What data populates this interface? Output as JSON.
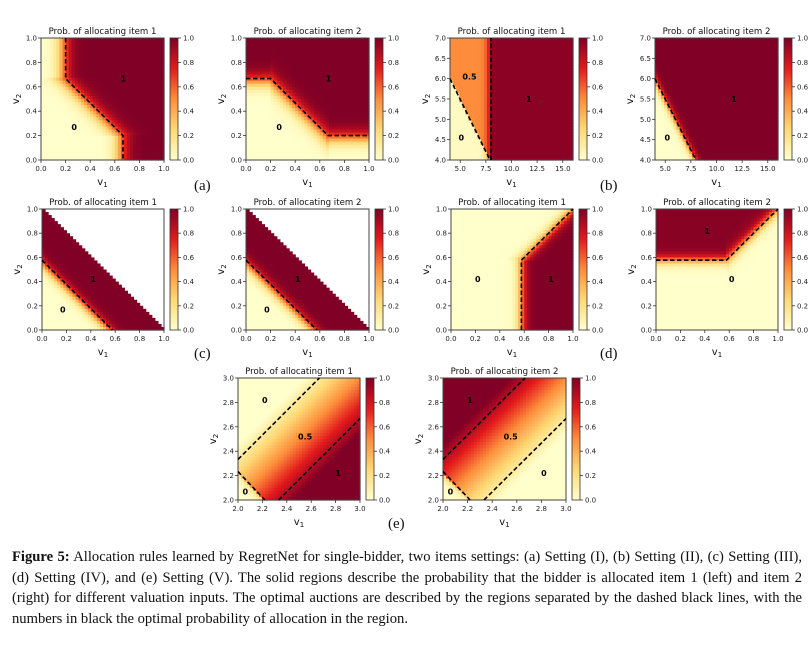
{
  "figure": {
    "caption_label": "Figure 5:",
    "caption_text": "Allocation rules learned by RegretNet for single-bidder, two items settings: (a) Setting (I), (b) Setting (II), (c) Setting (III), (d) Setting (IV), and (e) Setting (V). The solid regions describe the probability that the bidder is allocated item 1 (left) and item 2 (right) for different valuation inputs. The optimal auctions are described by the regions separated by the dashed black lines, with the numbers in black the optimal probability of allocation in the region.",
    "sublabels": [
      "(a)",
      "(b)",
      "(c)",
      "(d)",
      "(e)"
    ],
    "colormap": "YlOrRd",
    "colormap_colors": [
      "#ffffcc",
      "#fed976",
      "#fd8d3c",
      "#e31a1c",
      "#800026"
    ],
    "dashed_line_color": "#000000"
  },
  "chart_data": [
    {
      "type": "heatmap",
      "panel": "a",
      "title": "Prob. of allocating item 1",
      "xlabel": "v1",
      "ylabel": "v2",
      "xlim": [
        0,
        1
      ],
      "ylim": [
        0,
        1
      ],
      "xticks": [
        "0.0",
        "0.2",
        "0.4",
        "0.6",
        "0.8",
        "1.0"
      ],
      "yticks": [
        "0.0",
        "0.2",
        "0.4",
        "0.6",
        "0.8",
        "1.0"
      ],
      "colorbar_ticks": [
        "0.0",
        "0.2",
        "0.4",
        "0.6",
        "0.8",
        "1.0"
      ],
      "boundary": [
        [
          0.2,
          1.0
        ],
        [
          0.2,
          0.667
        ],
        [
          0.667,
          0.2
        ],
        [
          0.667,
          0.0
        ]
      ],
      "region_labels": [
        {
          "text": "1",
          "x": 0.67,
          "y": 0.67
        },
        {
          "text": "0",
          "x": 0.27,
          "y": 0.27
        }
      ]
    },
    {
      "type": "heatmap",
      "panel": "a",
      "title": "Prob. of allocating item 2",
      "xlabel": "v1",
      "ylabel": "v2",
      "xlim": [
        0,
        1
      ],
      "ylim": [
        0,
        1
      ],
      "xticks": [
        "0.0",
        "0.2",
        "0.4",
        "0.6",
        "0.8",
        "1.0"
      ],
      "yticks": [
        "0.0",
        "0.2",
        "0.4",
        "0.6",
        "0.8",
        "1.0"
      ],
      "colorbar_ticks": [
        "0.0",
        "0.2",
        "0.4",
        "0.6",
        "0.8",
        "1.0"
      ],
      "boundary": [
        [
          0.0,
          0.667
        ],
        [
          0.2,
          0.667
        ],
        [
          0.667,
          0.2
        ],
        [
          1.0,
          0.2
        ]
      ],
      "region_labels": [
        {
          "text": "1",
          "x": 0.67,
          "y": 0.67
        },
        {
          "text": "0",
          "x": 0.27,
          "y": 0.27
        }
      ]
    },
    {
      "type": "heatmap",
      "panel": "b",
      "title": "Prob. of allocating item 1",
      "xlabel": "v1",
      "ylabel": "v2",
      "xlim": [
        4,
        16
      ],
      "ylim": [
        4,
        7
      ],
      "xticks": [
        "5.0",
        "7.5",
        "10.0",
        "12.5",
        "15.0"
      ],
      "xtick_values": [
        5,
        7.5,
        10,
        12.5,
        15
      ],
      "yticks": [
        "4.0",
        "4.5",
        "5.0",
        "5.5",
        "6.0",
        "6.5",
        "7.0"
      ],
      "ytick_values": [
        4,
        4.5,
        5,
        5.5,
        6,
        6.5,
        7
      ],
      "colorbar_ticks": [
        "0.0",
        "0.2",
        "0.4",
        "0.6",
        "0.8",
        "1.0"
      ],
      "boundaries": [
        [
          [
            4,
            6
          ],
          [
            7.9,
            4
          ]
        ],
        [
          [
            8,
            4
          ],
          [
            8,
            7
          ]
        ]
      ],
      "region_labels": [
        {
          "text": "0.5",
          "x": 5.9,
          "y": 6.05
        },
        {
          "text": "1",
          "x": 11.7,
          "y": 5.5
        },
        {
          "text": "0",
          "x": 5.1,
          "y": 4.55
        }
      ]
    },
    {
      "type": "heatmap",
      "panel": "b",
      "title": "Prob. of allocating item 2",
      "xlabel": "v1",
      "ylabel": "v2",
      "xlim": [
        4,
        16
      ],
      "ylim": [
        4,
        7
      ],
      "xticks": [
        "5.0",
        "7.5",
        "10.0",
        "12.5",
        "15.0"
      ],
      "xtick_values": [
        5,
        7.5,
        10,
        12.5,
        15
      ],
      "yticks": [
        "4.0",
        "4.5",
        "5.0",
        "5.5",
        "6.0",
        "6.5",
        "7.0"
      ],
      "ytick_values": [
        4,
        4.5,
        5,
        5.5,
        6,
        6.5,
        7
      ],
      "colorbar_ticks": [
        "0.0",
        "0.2",
        "0.4",
        "0.6",
        "0.8",
        "1.0"
      ],
      "boundaries": [
        [
          [
            4,
            6
          ],
          [
            8,
            4
          ]
        ]
      ],
      "region_labels": [
        {
          "text": "1",
          "x": 11.7,
          "y": 5.5
        },
        {
          "text": "0",
          "x": 5.2,
          "y": 4.55
        }
      ]
    },
    {
      "type": "heatmap",
      "panel": "c",
      "title": "Prob. of allocating item 1",
      "xlabel": "v1",
      "ylabel": "v2",
      "xlim": [
        0,
        1
      ],
      "ylim": [
        0,
        1
      ],
      "xticks": [
        "0.0",
        "0.2",
        "0.4",
        "0.6",
        "0.8",
        "1.0"
      ],
      "yticks": [
        "0.0",
        "0.2",
        "0.4",
        "0.6",
        "0.8",
        "1.0"
      ],
      "colorbar_ticks": [
        "0.0",
        "0.2",
        "0.4",
        "0.6",
        "0.8",
        "1.0"
      ],
      "boundary": [
        [
          0.0,
          0.577
        ],
        [
          0.577,
          0.0
        ]
      ],
      "region_labels": [
        {
          "text": "1",
          "x": 0.42,
          "y": 0.42
        },
        {
          "text": "0",
          "x": 0.17,
          "y": 0.17
        }
      ]
    },
    {
      "type": "heatmap",
      "panel": "c",
      "title": "Prob. of allocating item 2",
      "xlabel": "v1",
      "ylabel": "v2",
      "xlim": [
        0,
        1
      ],
      "ylim": [
        0,
        1
      ],
      "xticks": [
        "0.0",
        "0.2",
        "0.4",
        "0.6",
        "0.8",
        "1.0"
      ],
      "yticks": [
        "0.0",
        "0.2",
        "0.4",
        "0.6",
        "0.8",
        "1.0"
      ],
      "colorbar_ticks": [
        "0.0",
        "0.2",
        "0.4",
        "0.6",
        "0.8",
        "1.0"
      ],
      "boundary": [
        [
          0.0,
          0.577
        ],
        [
          0.577,
          0.0
        ]
      ],
      "region_labels": [
        {
          "text": "1",
          "x": 0.42,
          "y": 0.42
        },
        {
          "text": "0",
          "x": 0.17,
          "y": 0.17
        }
      ]
    },
    {
      "type": "heatmap",
      "panel": "d",
      "title": "Prob. of allocating item 1",
      "xlabel": "v1",
      "ylabel": "v2",
      "xlim": [
        0,
        1
      ],
      "ylim": [
        0,
        1
      ],
      "xticks": [
        "0.0",
        "0.2",
        "0.4",
        "0.6",
        "0.8",
        "1.0"
      ],
      "yticks": [
        "0.0",
        "0.2",
        "0.4",
        "0.6",
        "0.8",
        "1.0"
      ],
      "colorbar_ticks": [
        "0.0",
        "0.2",
        "0.4",
        "0.6",
        "0.8",
        "1.0"
      ],
      "boundary": [
        [
          0.577,
          0.0
        ],
        [
          0.577,
          0.577
        ],
        [
          1.0,
          1.0
        ]
      ],
      "region_labels": [
        {
          "text": "0",
          "x": 0.22,
          "y": 0.42
        },
        {
          "text": "1",
          "x": 0.82,
          "y": 0.42
        }
      ]
    },
    {
      "type": "heatmap",
      "panel": "d",
      "title": "Prob. of allocating item 2",
      "xlabel": "v1",
      "ylabel": "v2",
      "xlim": [
        0,
        1
      ],
      "ylim": [
        0,
        1
      ],
      "xticks": [
        "0.0",
        "0.2",
        "0.4",
        "0.6",
        "0.8",
        "1.0"
      ],
      "yticks": [
        "0.0",
        "0.2",
        "0.4",
        "0.6",
        "0.8",
        "1.0"
      ],
      "colorbar_ticks": [
        "0.0",
        "0.2",
        "0.4",
        "0.6",
        "0.8",
        "1.0"
      ],
      "boundary": [
        [
          0.0,
          0.577
        ],
        [
          0.577,
          0.577
        ],
        [
          1.0,
          1.0
        ]
      ],
      "region_labels": [
        {
          "text": "1",
          "x": 0.42,
          "y": 0.82
        },
        {
          "text": "0",
          "x": 0.62,
          "y": 0.42
        }
      ]
    },
    {
      "type": "heatmap",
      "panel": "e",
      "title": "Prob. of allocating item 1",
      "xlabel": "v1",
      "ylabel": "v2",
      "xlim": [
        2,
        3
      ],
      "ylim": [
        2,
        3
      ],
      "xticks": [
        "2.0",
        "2.2",
        "2.4",
        "2.6",
        "2.8",
        "3.0"
      ],
      "yticks": [
        "2.0",
        "2.2",
        "2.4",
        "2.6",
        "2.8",
        "3.0"
      ],
      "colorbar_ticks": [
        "0.0",
        "0.2",
        "0.4",
        "0.6",
        "0.8",
        "1.0"
      ],
      "boundaries": [
        [
          [
            2,
            2.333
          ],
          [
            2.667,
            3
          ]
        ],
        [
          [
            2.333,
            2
          ],
          [
            3,
            2.667
          ]
        ],
        [
          [
            2,
            2.233
          ],
          [
            2.22,
            2
          ]
        ]
      ],
      "region_labels": [
        {
          "text": "0",
          "x": 2.22,
          "y": 2.82
        },
        {
          "text": "0.5",
          "x": 2.55,
          "y": 2.52
        },
        {
          "text": "1",
          "x": 2.82,
          "y": 2.22
        },
        {
          "text": "0",
          "x": 2.06,
          "y": 2.07
        }
      ]
    },
    {
      "type": "heatmap",
      "panel": "e",
      "title": "Prob. of allocating item 2",
      "xlabel": "v1",
      "ylabel": "v2",
      "xlim": [
        2,
        3
      ],
      "ylim": [
        2,
        3
      ],
      "xticks": [
        "2.0",
        "2.2",
        "2.4",
        "2.6",
        "2.8",
        "3.0"
      ],
      "yticks": [
        "2.0",
        "2.2",
        "2.4",
        "2.6",
        "2.8",
        "3.0"
      ],
      "colorbar_ticks": [
        "0.0",
        "0.2",
        "0.4",
        "0.6",
        "0.8",
        "1.0"
      ],
      "boundaries": [
        [
          [
            2,
            2.333
          ],
          [
            2.667,
            3
          ]
        ],
        [
          [
            2.333,
            2
          ],
          [
            3,
            2.667
          ]
        ],
        [
          [
            2,
            2.233
          ],
          [
            2.22,
            2
          ]
        ]
      ],
      "region_labels": [
        {
          "text": "1",
          "x": 2.22,
          "y": 2.82
        },
        {
          "text": "0.5",
          "x": 2.55,
          "y": 2.52
        },
        {
          "text": "0",
          "x": 2.82,
          "y": 2.22
        },
        {
          "text": "0",
          "x": 2.06,
          "y": 2.07
        }
      ]
    }
  ]
}
